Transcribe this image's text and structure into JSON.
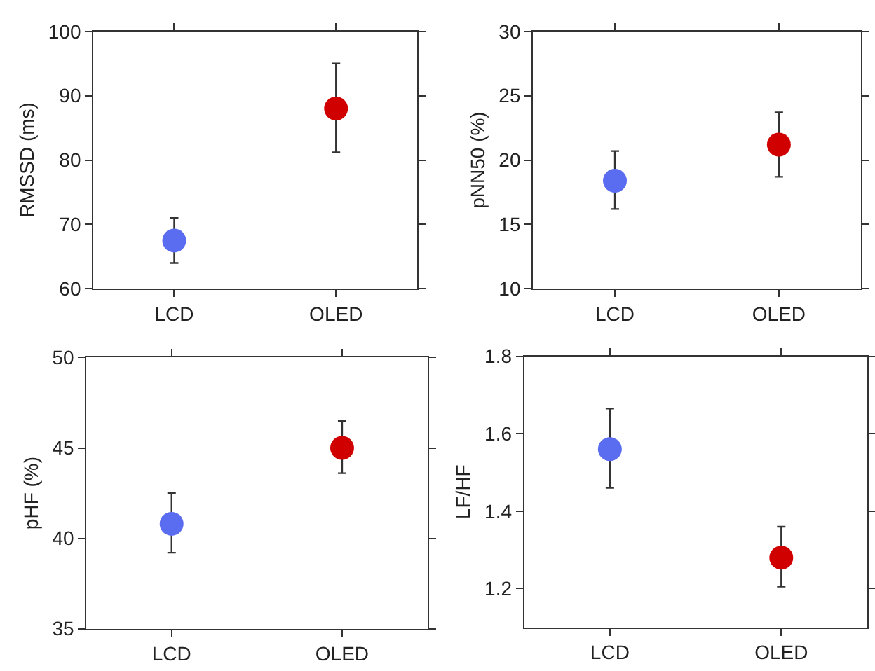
{
  "chart_data": [
    {
      "type": "scatter",
      "ylabel": "RMSSD (ms)",
      "categories": [
        "LCD",
        "OLED"
      ],
      "values": [
        67.5,
        88
      ],
      "colors": [
        "#5a6cf0",
        "#d00000"
      ],
      "errors": [
        [
          64,
          71
        ],
        [
          81.2,
          95
        ]
      ],
      "ylim": [
        60,
        100
      ],
      "yticks": [
        60,
        70,
        80,
        90,
        100
      ],
      "marker": "circle"
    },
    {
      "type": "scatter",
      "ylabel": "pNN50 (%)",
      "categories": [
        "LCD",
        "OLED"
      ],
      "values": [
        18.4,
        21.2
      ],
      "colors": [
        "#5a6cf0",
        "#d00000"
      ],
      "errors": [
        [
          16.2,
          20.7
        ],
        [
          18.7,
          23.7
        ]
      ],
      "ylim": [
        10,
        30
      ],
      "yticks": [
        10,
        15,
        20,
        25,
        30
      ],
      "marker": "circle"
    },
    {
      "type": "scatter",
      "ylabel": "pHF (%)",
      "categories": [
        "LCD",
        "OLED"
      ],
      "values": [
        40.8,
        45.0
      ],
      "colors": [
        "#5a6cf0",
        "#d00000"
      ],
      "errors": [
        [
          39.2,
          42.5
        ],
        [
          43.6,
          46.5
        ]
      ],
      "ylim": [
        35,
        50
      ],
      "yticks": [
        35,
        40,
        45,
        50
      ],
      "marker": "circle"
    },
    {
      "type": "scatter",
      "ylabel": "LF/HF",
      "categories": [
        "LCD",
        "OLED"
      ],
      "values": [
        1.56,
        1.28
      ],
      "colors": [
        "#5a6cf0",
        "#d00000"
      ],
      "errors": [
        [
          1.46,
          1.665
        ],
        [
          1.205,
          1.36
        ]
      ],
      "ylim": [
        1.1,
        1.8
      ],
      "yticks": [
        1.2,
        1.4,
        1.6,
        1.8
      ],
      "marker": "circle"
    }
  ]
}
